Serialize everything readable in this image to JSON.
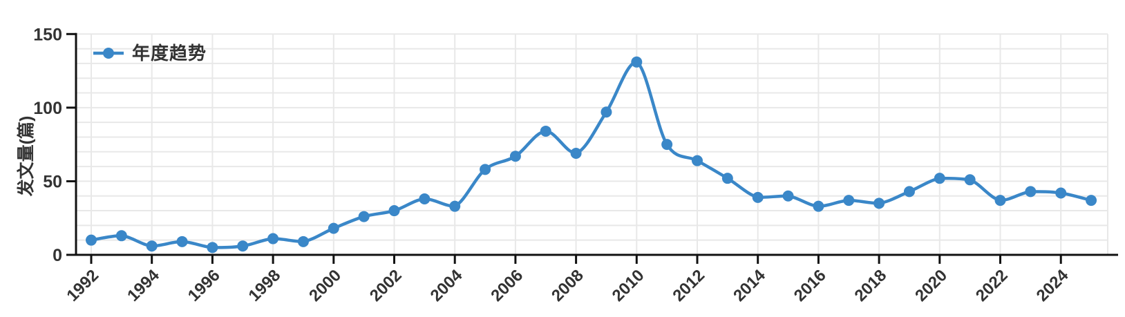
{
  "chart_data": {
    "type": "line",
    "title": "",
    "ylabel": "发文量(篇)",
    "xlabel": "",
    "legend": [
      "年度趋势"
    ],
    "legend_position": "top-left",
    "grid": true,
    "smooth": true,
    "x": [
      1992,
      1993,
      1994,
      1995,
      1996,
      1997,
      1998,
      1999,
      2000,
      2001,
      2002,
      2003,
      2004,
      2005,
      2006,
      2007,
      2008,
      2009,
      2010,
      2011,
      2012,
      2013,
      2014,
      2015,
      2016,
      2017,
      2018,
      2019,
      2020,
      2021,
      2022,
      2023,
      2024,
      2025
    ],
    "series": [
      {
        "name": "年度趋势",
        "values": [
          10,
          13,
          6,
          9,
          5,
          6,
          11,
          9,
          18,
          26,
          30,
          38,
          33,
          58,
          67,
          84,
          69,
          97,
          131,
          75,
          64,
          52,
          39,
          40,
          33,
          37,
          35,
          43,
          52,
          51,
          37,
          43,
          42,
          37
        ]
      }
    ],
    "ylim": [
      0,
      150
    ],
    "yticks": [
      0,
      50,
      100,
      150
    ],
    "ytick_minor_step": 10,
    "xtick_labels": [
      "1992",
      "1994",
      "1996",
      "1998",
      "2000",
      "2002",
      "2004",
      "2006",
      "2008",
      "2010",
      "2012",
      "2014",
      "2016",
      "2018",
      "2020",
      "2022",
      "2024"
    ],
    "colors": {
      "line": "#3a87c8",
      "marker": "#3a87c8",
      "axis": "#111111",
      "grid": "#e8e8e8",
      "text": "#333333"
    }
  }
}
